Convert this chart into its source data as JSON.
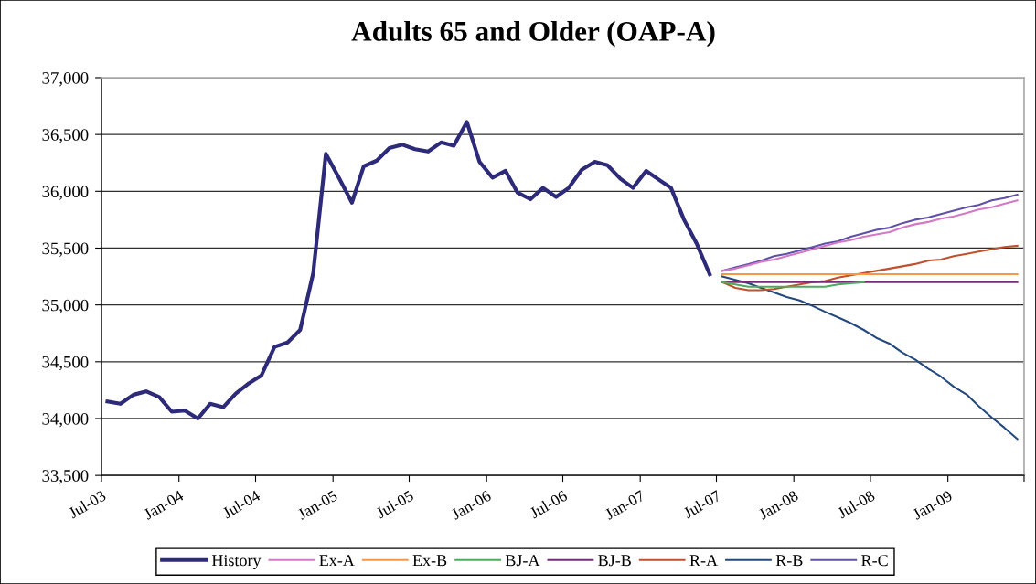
{
  "chart_data": {
    "type": "line",
    "title": "Adults 65 and Older (OAP-A)",
    "x": [
      "2007-07-15",
      "2007-08-15",
      "2007-09-15",
      "2007-10-15",
      "2007-11-15",
      "2007-12-15",
      "2008-01-15",
      "2008-02-15",
      "2008-03-15",
      "2008-04-15",
      "2008-05-15",
      "2008-06-15",
      "2008-07-15",
      "2008-08-15",
      "2008-09-15",
      "2008-10-15",
      "2008-11-15",
      "2008-12-15",
      "2009-01-15",
      "2009-02-15",
      "2009-03-15",
      "2009-04-15",
      "2009-05-15",
      "2009-06-15"
    ],
    "series": [
      {
        "name": "History",
        "color": "#2e2a7a",
        "x": [
          "2003-07-15",
          "2003-08-15",
          "2003-09-15",
          "2003-10-15",
          "2003-11-15",
          "2003-12-15",
          "2004-01-15",
          "2004-02-15",
          "2004-03-15",
          "2004-04-15",
          "2004-05-15",
          "2004-06-15",
          "2004-07-15",
          "2004-08-15",
          "2004-09-15",
          "2004-10-15",
          "2004-11-15",
          "2004-12-15",
          "2005-01-15",
          "2005-02-15",
          "2005-03-15",
          "2005-04-15",
          "2005-05-15",
          "2005-06-15",
          "2005-07-15",
          "2005-08-15",
          "2005-09-15",
          "2005-10-15",
          "2005-11-15",
          "2005-12-15",
          "2006-01-15",
          "2006-02-15",
          "2006-03-15",
          "2006-04-15",
          "2006-05-15",
          "2006-06-15",
          "2006-07-15",
          "2006-08-15",
          "2006-09-15",
          "2006-10-15",
          "2006-11-15",
          "2006-12-15",
          "2007-01-15",
          "2007-02-15",
          "2007-03-15",
          "2007-04-15",
          "2007-05-15",
          "2007-06-15"
        ],
        "values": [
          34150,
          34130,
          34210,
          34240,
          34190,
          34060,
          34070,
          34000,
          34130,
          34100,
          34220,
          34310,
          34380,
          34630,
          34670,
          34780,
          35280,
          36330,
          36120,
          35900,
          36220,
          36270,
          36380,
          36410,
          36370,
          36350,
          36430,
          36400,
          36610,
          36260,
          36120,
          36180,
          35990,
          35930,
          36030,
          35950,
          36030,
          36190,
          36260,
          36230,
          36110,
          36030,
          36180,
          36100,
          36030,
          35750,
          35540,
          35270
        ]
      },
      {
        "name": "Ex-A",
        "color": "#d478c6",
        "values": [
          35300,
          35320,
          35350,
          35380,
          35400,
          35430,
          35460,
          35490,
          35520,
          35550,
          35570,
          35600,
          35620,
          35640,
          35680,
          35710,
          35730,
          35760,
          35780,
          35810,
          35840,
          35860,
          35890,
          35920
        ]
      },
      {
        "name": "Ex-B",
        "color": "#f79646",
        "values": [
          35270,
          35270,
          35270,
          35270,
          35270,
          35270,
          35270,
          35270,
          35270,
          35270,
          35270,
          35270,
          35270,
          35270,
          35270,
          35270,
          35270,
          35270,
          35270,
          35270,
          35270,
          35270,
          35270,
          35270
        ]
      },
      {
        "name": "BJ-A",
        "color": "#4bac5a",
        "values": [
          35200,
          35180,
          35160,
          35160,
          35160,
          35160,
          35160,
          35160,
          35160,
          35180,
          35190,
          35200,
          null,
          null,
          null,
          null,
          null,
          null,
          null,
          null,
          null,
          null,
          null,
          null
        ]
      },
      {
        "name": "BJ-B",
        "color": "#7a2a7a",
        "values": [
          35200,
          35200,
          35200,
          35200,
          35200,
          35200,
          35200,
          35200,
          35200,
          35200,
          35200,
          35200,
          35200,
          35200,
          35200,
          35200,
          35200,
          35200,
          35200,
          35200,
          35200,
          35200,
          35200,
          35200
        ]
      },
      {
        "name": "R-A",
        "color": "#c0502e",
        "values": [
          35200,
          35150,
          35130,
          35130,
          35140,
          35160,
          35180,
          35200,
          35210,
          35240,
          35260,
          35280,
          35300,
          35320,
          35340,
          35360,
          35390,
          35400,
          35430,
          35450,
          35470,
          35490,
          35510,
          35520
        ]
      },
      {
        "name": "R-B",
        "color": "#23497e",
        "values": [
          35250,
          35220,
          35190,
          35150,
          35110,
          35070,
          35040,
          34990,
          34940,
          34890,
          34840,
          34780,
          34710,
          34660,
          34580,
          34520,
          34440,
          34370,
          34280,
          34210,
          34110,
          34010,
          33920,
          33820
        ]
      },
      {
        "name": "R-C",
        "color": "#6050a8",
        "values": [
          35300,
          35330,
          35360,
          35390,
          35430,
          35450,
          35480,
          35510,
          35540,
          35560,
          35600,
          35630,
          35660,
          35680,
          35720,
          35750,
          35770,
          35800,
          35830,
          35860,
          35880,
          35920,
          35940,
          35970
        ]
      }
    ],
    "xlim": [
      "2003-07",
      "2009-07"
    ],
    "xticks": [
      {
        "value": "2003-07",
        "label": "Jul-03"
      },
      {
        "value": "2004-01",
        "label": "Jan-04"
      },
      {
        "value": "2004-07",
        "label": "Jul-04"
      },
      {
        "value": "2005-01",
        "label": "Jan-05"
      },
      {
        "value": "2005-07",
        "label": "Jul-05"
      },
      {
        "value": "2006-01",
        "label": "Jan-06"
      },
      {
        "value": "2006-07",
        "label": "Jul-06"
      },
      {
        "value": "2007-01",
        "label": "Jan-07"
      },
      {
        "value": "2007-07",
        "label": "Jul-07"
      },
      {
        "value": "2008-01",
        "label": "Jan-08"
      },
      {
        "value": "2008-07",
        "label": "Jul-08"
      },
      {
        "value": "2009-01",
        "label": "Jan-09"
      },
      {
        "value": "2009-07",
        "label": null
      }
    ],
    "ylim": [
      33500,
      37000
    ],
    "yticks": [
      {
        "value": 33500,
        "label": "33,500"
      },
      {
        "value": 34000,
        "label": "34,000"
      },
      {
        "value": 34500,
        "label": "34,500"
      },
      {
        "value": 35000,
        "label": "35,000"
      },
      {
        "value": 35500,
        "label": "35,500"
      },
      {
        "value": 36000,
        "label": "36,000"
      },
      {
        "value": 36500,
        "label": "36,500"
      },
      {
        "value": 37000,
        "label": "37,000"
      }
    ],
    "grid": "y",
    "legend": "bottom",
    "line_style": "solid"
  }
}
